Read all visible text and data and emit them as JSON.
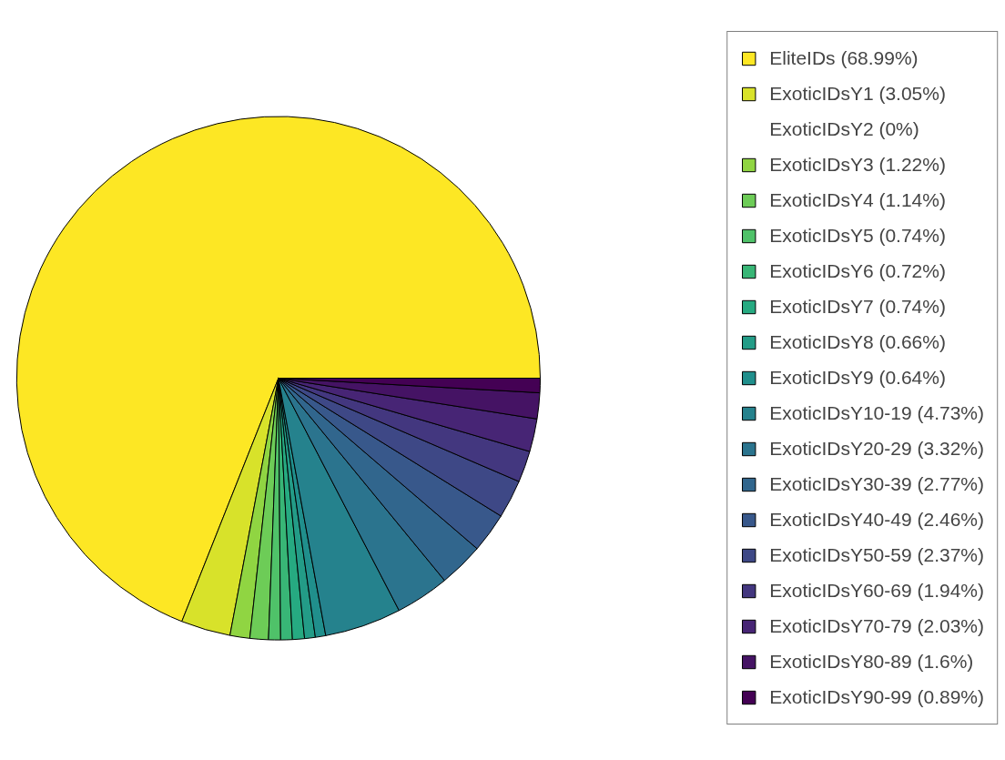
{
  "chart_data": {
    "type": "pie",
    "categories": [
      "EliteIDs (68.99%)",
      "ExoticIDsY1 (3.05%)",
      "ExoticIDsY2 (0%)",
      "ExoticIDsY3 (1.22%)",
      "ExoticIDsY4 (1.14%)",
      "ExoticIDsY5 (0.74%)",
      "ExoticIDsY6 (0.72%)",
      "ExoticIDsY7 (0.74%)",
      "ExoticIDsY8 (0.66%)",
      "ExoticIDsY9 (0.64%)",
      "ExoticIDsY10-19 (4.73%)",
      "ExoticIDsY20-29 (3.32%)",
      "ExoticIDsY30-39 (2.77%)",
      "ExoticIDsY40-49 (2.46%)",
      "ExoticIDsY50-59 (2.37%)",
      "ExoticIDsY60-69 (1.94%)",
      "ExoticIDsY70-79 (2.03%)",
      "ExoticIDsY80-89 (1.6%)",
      "ExoticIDsY90-99 (0.89%)"
    ],
    "values": [
      68.99,
      3.05,
      0,
      1.22,
      1.14,
      0.74,
      0.72,
      0.74,
      0.66,
      0.64,
      4.73,
      3.32,
      2.77,
      2.46,
      2.37,
      1.94,
      2.03,
      1.6,
      0.89
    ],
    "colors": [
      "#FDE724",
      "#D8E22A",
      "#B3DC30",
      "#90D542",
      "#6DCC57",
      "#4FC269",
      "#38B676",
      "#26AA81",
      "#239C87",
      "#208F8C",
      "#25828D",
      "#2B748E",
      "#31668D",
      "#38588B",
      "#3E4886",
      "#43377F",
      "#472575",
      "#451364",
      "#440154"
    ],
    "legend": "right"
  }
}
